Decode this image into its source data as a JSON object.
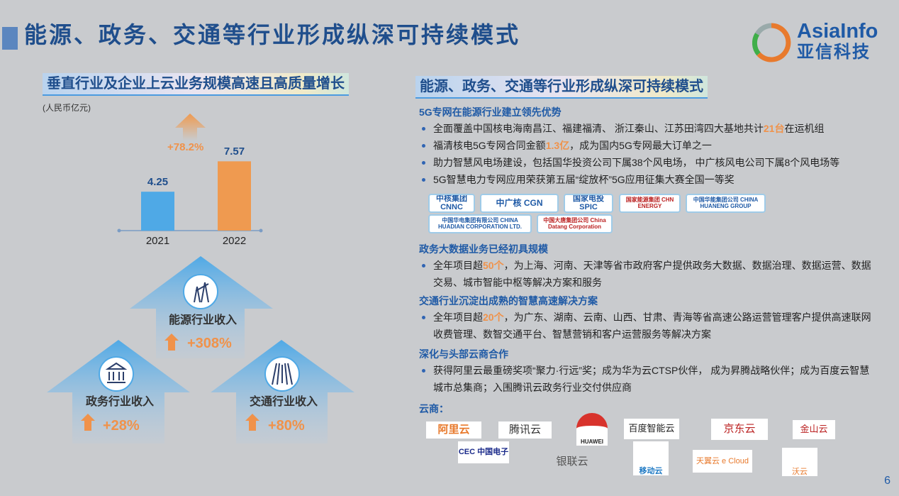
{
  "title": "能源、政务、交通等行业形成纵深可持续模式",
  "logo": {
    "en": "AsiaInfo",
    "cn": "亚信科技"
  },
  "left": {
    "subtitle": "垂直行业及企业上云业务规模高速且高质量增长",
    "unit": "(人民币亿元)",
    "growth": "+78.2%",
    "arrows": [
      {
        "label": "能源行业收入",
        "pct": "+308%",
        "icon": "power-tower-icon"
      },
      {
        "label": "政务行业收入",
        "pct": "+28%",
        "icon": "government-building-icon"
      },
      {
        "label": "交通行业收入",
        "pct": "+80%",
        "icon": "highway-road-icon"
      }
    ]
  },
  "chart_data": {
    "type": "bar",
    "categories": [
      "2021",
      "2022"
    ],
    "values": [
      4.25,
      7.57
    ],
    "value_labels": [
      "4.25",
      "7.57"
    ],
    "colors": [
      "#4fa9e6",
      "#ef9a50"
    ],
    "ylabel": "(人民币亿元)",
    "annotation": "+78.2%"
  },
  "right": {
    "subtitle": "能源、政务、交通等行业形成纵深可持续模式",
    "sections": [
      {
        "heading": "5G专网在能源行业建立领先优势",
        "bullets": [
          [
            {
              "t": "全面覆盖中国核电海南昌江、福建福清、 浙江秦山、江苏田湾四大基地共计"
            },
            {
              "t": "21台",
              "hl": true
            },
            {
              "t": "在运机组"
            }
          ],
          [
            {
              "t": "福清核电5G专网合同金额"
            },
            {
              "t": "1.3亿",
              "hl": true
            },
            {
              "t": "，成为国内5G专网最大订单之一"
            }
          ],
          [
            {
              "t": "助力智慧风电场建设，包括国华投资公司下属38个风电场， 中广核风电公司下属8个风电场等"
            }
          ],
          [
            {
              "t": "5G智慧电力专网应用荣获第五届“绽放杯”5G应用征集大赛全国一等奖"
            }
          ]
        ]
      },
      {
        "heading": "政务大数据业务已经初具规模",
        "bullets": [
          [
            {
              "t": "全年项目超"
            },
            {
              "t": "50个",
              "hl": true
            },
            {
              "t": "，为上海、河南、天津等省市政府客户提供政务大数据、数据治理、数据运营、数据交易、城市智能中枢等解决方案和服务"
            }
          ]
        ]
      },
      {
        "heading": "交通行业沉淀出成熟的智慧高速解决方案",
        "bullets": [
          [
            {
              "t": "全年项目超"
            },
            {
              "t": "20个",
              "hl": true
            },
            {
              "t": "，为广东、湖南、云南、山西、甘肃、青海等省高速公路运营管理客户提供高速联网收费管理、数智交通平台、智慧营销和客户运营服务等解决方案"
            }
          ]
        ]
      },
      {
        "heading": "深化与头部云商合作",
        "bullets": [
          [
            {
              "t": "获得阿里云最重磅奖项“聚力·行远”奖；成为华为云CTSP伙伴， 成为昇腾战略伙伴；成为百度云智慧城市总集商；入围腾讯云政务行业交付供应商"
            }
          ]
        ]
      }
    ],
    "energy_logos": [
      "中核集团 CNNC",
      "中广核 CGN",
      "国家电投 SPIC",
      "国家能源集团 CHN ENERGY",
      "中国华能集团公司 CHINA HUANENG GROUP",
      "中国华电集团有限公司 CHINA HUADIAN CORPORATION LTD.",
      "中国大唐集团公司 China Datang Corporation"
    ],
    "cloud_label": "云商：",
    "cloud_logos": [
      "阿里云",
      "腾讯云",
      "HUAWEI",
      "百度智能云",
      "京东云",
      "金山云",
      "CEC 中国电子",
      "银联云",
      "移动云",
      "天翼云 e Cloud",
      "沃云"
    ]
  },
  "page_number": "6"
}
